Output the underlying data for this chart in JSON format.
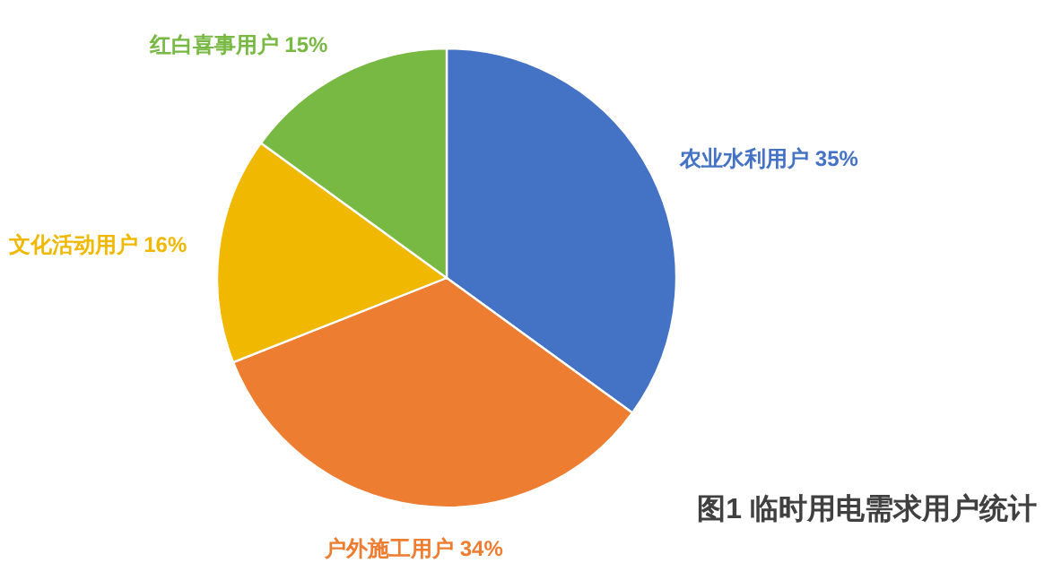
{
  "chart_data": {
    "type": "pie",
    "title": "图1  临时用电需求用户统计",
    "categories": [
      "农业水利用户",
      "户外施工用户",
      "文化活动用户",
      "红白喜事用户"
    ],
    "values": [
      35,
      34,
      16,
      15
    ],
    "value_labels": [
      "35%",
      "34%",
      "16%",
      "15%"
    ],
    "colors": [
      "#4472c4",
      "#ed7d31",
      "#f0b800",
      "#78b943"
    ]
  }
}
